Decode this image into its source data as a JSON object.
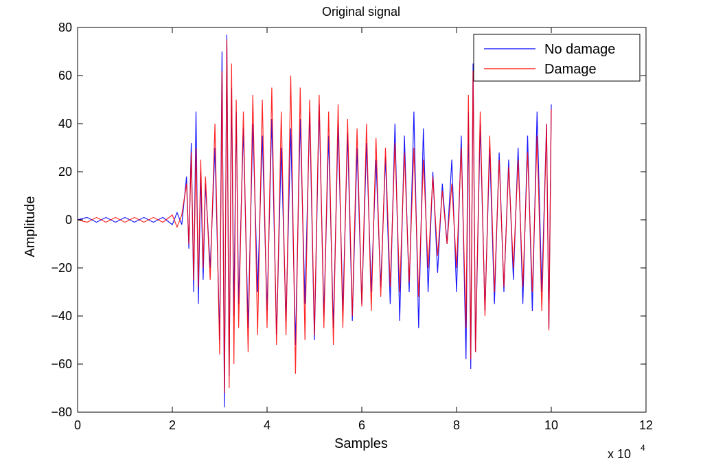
{
  "chart_data": {
    "type": "line",
    "title": "Original signal",
    "xlabel": "Samples",
    "ylabel": "Amplitude",
    "x_exponent_label": "x 10",
    "x_exponent_power": "4",
    "xlim": [
      0,
      12
    ],
    "ylim": [
      -80,
      80
    ],
    "xticks": [
      0,
      2,
      4,
      6,
      8,
      10,
      12
    ],
    "yticks": [
      -80,
      -60,
      -40,
      -20,
      0,
      20,
      40,
      60,
      80
    ],
    "xtick_labels": [
      "0",
      "2",
      "4",
      "6",
      "8",
      "10",
      "12"
    ],
    "ytick_labels": [
      "−80",
      "−60",
      "−40",
      "−20",
      "0",
      "20",
      "40",
      "60",
      "80"
    ],
    "legend_position": "top-right",
    "grid": false,
    "series": [
      {
        "name": "No damage",
        "color": "#0000ff",
        "x": [
          0,
          0.2,
          0.4,
          0.6,
          0.8,
          1.0,
          1.2,
          1.4,
          1.6,
          1.8,
          2.0,
          2.1,
          2.2,
          2.3,
          2.35,
          2.4,
          2.45,
          2.5,
          2.55,
          2.6,
          2.65,
          2.7,
          2.8,
          2.9,
          3.0,
          3.05,
          3.1,
          3.15,
          3.2,
          3.25,
          3.3,
          3.35,
          3.4,
          3.5,
          3.6,
          3.7,
          3.8,
          3.9,
          4.0,
          4.1,
          4.2,
          4.3,
          4.4,
          4.5,
          4.6,
          4.7,
          4.8,
          4.9,
          5.0,
          5.1,
          5.2,
          5.3,
          5.4,
          5.5,
          5.6,
          5.7,
          5.8,
          5.9,
          6.0,
          6.1,
          6.2,
          6.3,
          6.4,
          6.5,
          6.6,
          6.7,
          6.8,
          6.9,
          7.0,
          7.1,
          7.2,
          7.3,
          7.4,
          7.5,
          7.6,
          7.7,
          7.8,
          7.9,
          8.0,
          8.1,
          8.2,
          8.25,
          8.3,
          8.35,
          8.4,
          8.5,
          8.6,
          8.7,
          8.8,
          8.9,
          9.0,
          9.1,
          9.2,
          9.3,
          9.4,
          9.5,
          9.6,
          9.7,
          9.8,
          9.9,
          9.95,
          10.0
        ],
        "y": [
          0,
          1,
          -1,
          1,
          -1,
          1,
          -1,
          1,
          -1,
          1,
          -2,
          3,
          -2,
          18,
          -12,
          32,
          -30,
          45,
          -35,
          20,
          -25,
          15,
          -20,
          30,
          -50,
          70,
          -78,
          77,
          -65,
          55,
          -40,
          45,
          -35,
          38,
          -45,
          40,
          -30,
          35,
          -38,
          42,
          -48,
          30,
          -42,
          38,
          -52,
          42,
          -35,
          45,
          -50,
          48,
          -40,
          35,
          -45,
          40,
          -38,
          36,
          -42,
          30,
          -35,
          32,
          -30,
          25,
          -28,
          26,
          -35,
          40,
          -42,
          35,
          -30,
          45,
          -45,
          38,
          -30,
          20,
          -22,
          15,
          -10,
          25,
          -30,
          35,
          -58,
          45,
          -62,
          65,
          -55,
          40,
          -38,
          30,
          -35,
          28,
          -30,
          25,
          -25,
          30,
          -35,
          35,
          -38,
          45,
          -30,
          40,
          -45,
          48
        ]
      },
      {
        "name": "Damage",
        "color": "#ff0000",
        "x": [
          0,
          0.2,
          0.4,
          0.6,
          0.8,
          1.0,
          1.2,
          1.4,
          1.6,
          1.8,
          2.0,
          2.1,
          2.2,
          2.3,
          2.35,
          2.4,
          2.45,
          2.5,
          2.55,
          2.6,
          2.65,
          2.7,
          2.8,
          2.9,
          3.0,
          3.05,
          3.1,
          3.15,
          3.2,
          3.25,
          3.3,
          3.35,
          3.4,
          3.5,
          3.6,
          3.7,
          3.8,
          3.9,
          4.0,
          4.1,
          4.2,
          4.3,
          4.4,
          4.5,
          4.6,
          4.7,
          4.8,
          4.9,
          5.0,
          5.1,
          5.2,
          5.3,
          5.4,
          5.5,
          5.6,
          5.7,
          5.8,
          5.9,
          6.0,
          6.1,
          6.2,
          6.3,
          6.4,
          6.5,
          6.6,
          6.7,
          6.8,
          6.9,
          7.0,
          7.1,
          7.2,
          7.3,
          7.4,
          7.5,
          7.6,
          7.7,
          7.8,
          7.9,
          8.0,
          8.1,
          8.2,
          8.25,
          8.3,
          8.35,
          8.4,
          8.5,
          8.6,
          8.7,
          8.8,
          8.9,
          9.0,
          9.1,
          9.2,
          9.3,
          9.4,
          9.5,
          9.6,
          9.7,
          9.8,
          9.9,
          9.95,
          10.0
        ],
        "y": [
          0,
          -1,
          1,
          -1,
          1,
          -1,
          1,
          -1,
          1,
          -1,
          2,
          -3,
          2,
          15,
          -10,
          28,
          -25,
          30,
          -28,
          25,
          -20,
          18,
          -25,
          40,
          -56,
          62,
          -72,
          75,
          -70,
          65,
          -60,
          50,
          -45,
          45,
          -55,
          52,
          -48,
          50,
          -45,
          55,
          -52,
          45,
          -48,
          60,
          -64,
          55,
          -50,
          50,
          -48,
          52,
          -45,
          45,
          -52,
          48,
          -45,
          42,
          -40,
          38,
          -36,
          40,
          -38,
          34,
          -32,
          30,
          -28,
          32,
          -30,
          28,
          -26,
          30,
          -32,
          25,
          -20,
          18,
          -15,
          12,
          -10,
          15,
          -20,
          30,
          -45,
          52,
          -58,
          62,
          -55,
          45,
          -40,
          35,
          -30,
          25,
          -28,
          22,
          -20,
          25,
          -28,
          28,
          -30,
          35,
          -38,
          40,
          -46,
          46
        ]
      }
    ]
  }
}
